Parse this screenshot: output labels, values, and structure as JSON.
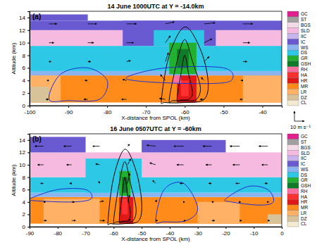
{
  "chart_data": [
    {
      "type": "heatmap",
      "title": "14 June 1000UTC at Y = -14.0km",
      "panel_label": "(a)",
      "x_label": "X-distance from SPOL (km)",
      "y_label": "Altitude (km)",
      "xlim": [
        -100,
        -35
      ],
      "xticks": [
        -100,
        -90,
        -80,
        -70,
        -60,
        -50,
        -40
      ],
      "ylim": [
        0,
        15
      ],
      "yticks": [
        0,
        2,
        4,
        6,
        8,
        10,
        12,
        14
      ],
      "regions": [
        {
          "class": "MR",
          "x0": -100,
          "x1": -35,
          "y0": 0.5,
          "y1": 4.8
        },
        {
          "class": "LR",
          "x0": -100,
          "x1": -92,
          "y0": 0.5,
          "y1": 4.8
        },
        {
          "class": "DZ",
          "x0": -100,
          "x1": -95,
          "y0": 0.5,
          "y1": 3
        },
        {
          "class": "LR",
          "x0": -45,
          "x1": -35,
          "y0": 0.5,
          "y1": 4.8
        },
        {
          "class": "WS",
          "x0": -100,
          "x1": -35,
          "y0": 4.8,
          "y1": 5.5
        },
        {
          "class": "DS",
          "x0": -100,
          "x1": -35,
          "y0": 5.5,
          "y1": 9.5
        },
        {
          "class": "SLD",
          "x0": -100,
          "x1": -35,
          "y0": 9.5,
          "y1": 12
        },
        {
          "class": "IC",
          "x0": -100,
          "x1": -35,
          "y0": 12,
          "y1": 13.5
        },
        {
          "class": "IC",
          "x0": -76,
          "x1": -52,
          "y0": 9.5,
          "y1": 13.5
        },
        {
          "class": "DS",
          "x0": -68,
          "x1": -55,
          "y0": 9.5,
          "y1": 12
        },
        {
          "class": "IC",
          "x0": -100,
          "x1": -85,
          "y0": 13.5,
          "y1": 14.5
        },
        {
          "class": "GR",
          "x0": -64,
          "x1": -57,
          "y0": 5,
          "y1": 10
        },
        {
          "class": "GSH",
          "x0": -62,
          "x1": -59,
          "y0": 6,
          "y1": 9
        },
        {
          "class": "HR",
          "x0": -62,
          "x1": -57,
          "y0": 0.5,
          "y1": 4.8
        },
        {
          "class": "HA",
          "x0": -61,
          "x1": -59,
          "y0": 1.5,
          "y1": 4
        },
        {
          "class": "RH",
          "x0": -63,
          "x1": -61,
          "y0": 3.5,
          "y1": 4.8
        }
      ],
      "contours": [
        {
          "color": "#000000",
          "x": [
            -66,
            -64,
            -60,
            -56,
            -54,
            -55,
            -60,
            -65
          ],
          "y": [
            1,
            8,
            12.5,
            9,
            4,
            1,
            0.5,
            0.5
          ]
        },
        {
          "color": "#000000",
          "x": [
            -64,
            -62,
            -60,
            -58,
            -56,
            -57,
            -60,
            -63
          ],
          "y": [
            1,
            7,
            10.5,
            7,
            3,
            1,
            0.8,
            0.8
          ]
        },
        {
          "color": "#000000",
          "x": [
            -62,
            -61,
            -60,
            -59,
            -58,
            -59,
            -60,
            -61
          ],
          "y": [
            1,
            5,
            8,
            5,
            2,
            1,
            0.9,
            0.9
          ]
        },
        {
          "color": "#1f2fd0",
          "x": [
            -95,
            -92,
            -85,
            -80,
            -82,
            -90
          ],
          "y": [
            1,
            5,
            6,
            4,
            1,
            0.8
          ]
        },
        {
          "color": "#1f2fd0",
          "x": [
            -75,
            -65,
            -50,
            -48,
            -55,
            -70
          ],
          "y": [
            4.5,
            6,
            6,
            4,
            3.5,
            3.8
          ]
        }
      ],
      "vectors": {
        "x": [
          -95,
          -85,
          -75,
          -65,
          -55,
          -45
        ],
        "y": [
          1,
          4,
          7,
          10,
          13
        ],
        "u": [
          [
            -3,
            -4,
            -5,
            -6,
            -4,
            -3
          ],
          [
            -2,
            -3,
            -4,
            -5,
            -3,
            -2
          ],
          [
            2,
            3,
            4,
            3,
            5,
            4
          ],
          [
            5,
            6,
            7,
            5,
            8,
            7
          ],
          [
            8,
            9,
            10,
            9,
            11,
            10
          ]
        ],
        "w": [
          [
            0,
            0,
            0,
            1,
            0,
            0
          ],
          [
            0,
            0,
            1,
            6,
            3,
            0
          ],
          [
            0,
            0,
            1,
            9,
            5,
            0
          ],
          [
            0,
            0,
            0,
            7,
            4,
            0
          ],
          [
            0,
            0,
            0,
            2,
            1,
            0
          ]
        ]
      }
    },
    {
      "type": "heatmap",
      "title": "16 June 0507UTC at Y = -60km",
      "panel_label": "(b)",
      "x_label": "X-distance from SPOL (km)",
      "y_label": "Altitude (km)",
      "xlim": [
        -90,
        0
      ],
      "xticks": [
        -90,
        -80,
        -70,
        -60,
        -50,
        -40,
        -30,
        -20,
        -10,
        0
      ],
      "ylim": [
        0,
        15
      ],
      "yticks": [
        0,
        2,
        4,
        6,
        8,
        10,
        12,
        14
      ],
      "regions": [
        {
          "class": "MR",
          "x0": -90,
          "x1": 0,
          "y0": 0.5,
          "y1": 4.8
        },
        {
          "class": "LR",
          "x0": -85,
          "x1": -65,
          "y0": 0.5,
          "y1": 4.5
        },
        {
          "class": "LR",
          "x0": -30,
          "x1": -15,
          "y0": 0.5,
          "y1": 4
        },
        {
          "class": "DZ",
          "x0": -5,
          "x1": 0,
          "y0": 0.5,
          "y1": 2
        },
        {
          "class": "WS",
          "x0": -90,
          "x1": 0,
          "y0": 4.8,
          "y1": 5.5
        },
        {
          "class": "DS",
          "x0": -90,
          "x1": 0,
          "y0": 5.5,
          "y1": 8
        },
        {
          "class": "SLD",
          "x0": -90,
          "x1": 0,
          "y0": 8,
          "y1": 12
        },
        {
          "class": "DS",
          "x0": -70,
          "x1": -50,
          "y0": 5.5,
          "y1": 11
        },
        {
          "class": "IC",
          "x0": -90,
          "x1": -70,
          "y0": 12,
          "y1": 14.5
        },
        {
          "class": "IC",
          "x0": -50,
          "x1": -20,
          "y0": 12,
          "y1": 14
        },
        {
          "class": "GR",
          "x0": -58,
          "x1": -54,
          "y0": 5,
          "y1": 9
        },
        {
          "class": "GSH",
          "x0": -57,
          "x1": -55,
          "y0": 5.5,
          "y1": 8
        },
        {
          "class": "HR",
          "x0": -58,
          "x1": -53,
          "y0": 0.5,
          "y1": 4.8
        },
        {
          "class": "HA",
          "x0": -57,
          "x1": -55,
          "y0": 2,
          "y1": 4.5
        }
      ],
      "contours": [
        {
          "color": "#000000",
          "x": [
            -62,
            -60,
            -56,
            -52,
            -50,
            -51,
            -56,
            -61
          ],
          "y": [
            1,
            8,
            12.5,
            9,
            4,
            1,
            0.5,
            0.5
          ]
        },
        {
          "color": "#000000",
          "x": [
            -60,
            -58,
            -56,
            -54,
            -52,
            -53,
            -56,
            -59
          ],
          "y": [
            1,
            7,
            10.5,
            7,
            3,
            1,
            0.8,
            0.8
          ]
        },
        {
          "color": "#000000",
          "x": [
            -58,
            -57,
            -56,
            -55,
            -54,
            -55,
            -56,
            -57
          ],
          "y": [
            1,
            5,
            8,
            5,
            2,
            1,
            0.9,
            0.9
          ]
        },
        {
          "color": "#1f2fd0",
          "x": [
            -45,
            -42,
            -35,
            -30,
            -34,
            -42
          ],
          "y": [
            1,
            6,
            7,
            3,
            1,
            0.8
          ]
        },
        {
          "color": "#1f2fd0",
          "x": [
            -90,
            -80,
            -70,
            -68,
            -75,
            -88
          ],
          "y": [
            4.5,
            6,
            6,
            4.5,
            4,
            4.2
          ]
        },
        {
          "color": "#1f2fd0",
          "x": [
            -20,
            -12,
            -5,
            -3,
            -8,
            -18
          ],
          "y": [
            4.5,
            6.5,
            6,
            4,
            3.5,
            4
          ]
        }
      ],
      "vectors": {
        "x": [
          -85,
          -75,
          -65,
          -55,
          -45,
          -35,
          -25,
          -15,
          -5
        ],
        "y": [
          1,
          4,
          7,
          10,
          13
        ],
        "u": [
          [
            3,
            4,
            5,
            3,
            2,
            2,
            3,
            2,
            2
          ],
          [
            2,
            3,
            4,
            2,
            1,
            1,
            2,
            1,
            1
          ],
          [
            -3,
            -2,
            -1,
            2,
            -3,
            -4,
            -3,
            -4,
            -3
          ],
          [
            -6,
            -5,
            -4,
            3,
            -6,
            -7,
            -6,
            -7,
            -6
          ],
          [
            -9,
            -8,
            -7,
            2,
            -9,
            -10,
            -9,
            -10,
            -9
          ]
        ],
        "w": [
          [
            0,
            0,
            0,
            1,
            0,
            0,
            0,
            0,
            0
          ],
          [
            0,
            0,
            1,
            7,
            2,
            0,
            0,
            0,
            0
          ],
          [
            0,
            0,
            2,
            10,
            3,
            0,
            0,
            0,
            0
          ],
          [
            0,
            0,
            1,
            6,
            2,
            0,
            0,
            0,
            0
          ],
          [
            0,
            0,
            0,
            2,
            1,
            0,
            0,
            0,
            0
          ]
        ]
      }
    }
  ],
  "classes": {
    "names": [
      "GC",
      "ST",
      "BGS",
      "SLD",
      "IIC",
      "IC",
      "WS",
      "DS",
      "GR",
      "GSH",
      "RH",
      "HA",
      "HR",
      "MR",
      "LR",
      "DZ",
      "CL"
    ],
    "colors": [
      "#e0208c",
      "#a0a0a0",
      "#f2dbe6",
      "#f6b9e0",
      "#c8b4ec",
      "#6a5ad2",
      "#8ab4f0",
      "#2cc8e6",
      "#22b030",
      "#0f7a28",
      "#ff70a0",
      "#ff3030",
      "#e01818",
      "#ff8c1a",
      "#ffb266",
      "#d8c29a",
      "#f4ead2"
    ]
  },
  "vector_reference": {
    "value": 10,
    "label": "10 m s⁻¹"
  }
}
